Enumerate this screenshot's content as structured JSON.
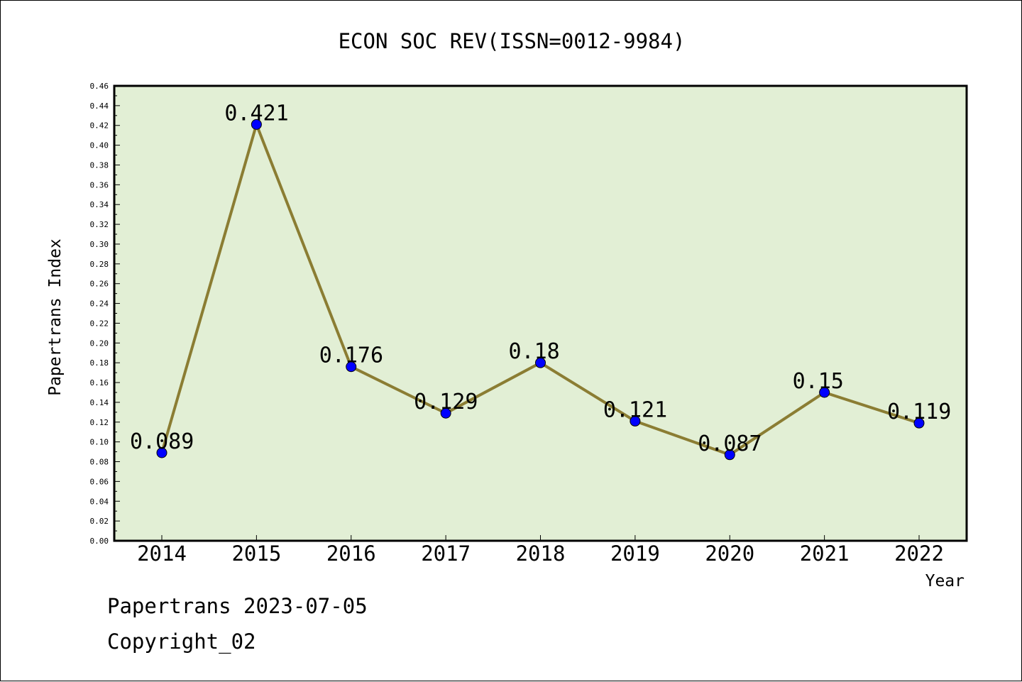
{
  "chart_data": {
    "type": "line",
    "title": "ECON SOC REV(ISSN=0012-9984)",
    "xlabel": "Year",
    "ylabel": "Papertrans Index",
    "categories": [
      "2014",
      "2015",
      "2016",
      "2017",
      "2018",
      "2019",
      "2020",
      "2021",
      "2022"
    ],
    "series": [
      {
        "values": [
          0.089,
          0.421,
          0.176,
          0.129,
          0.18,
          0.121,
          0.087,
          0.15,
          0.119
        ]
      }
    ],
    "data_labels": [
      "0.089",
      "0.421",
      "0.176",
      "0.129",
      "0.18",
      "0.121",
      "0.087",
      "0.15",
      "0.119"
    ],
    "ylim": [
      0,
      0.46
    ],
    "y_ticks": [
      "0.00",
      "0.02",
      "0.04",
      "0.06",
      "0.08",
      "0.10",
      "0.12",
      "0.14",
      "0.16",
      "0.18",
      "0.20",
      "0.22",
      "0.24",
      "0.26",
      "0.28",
      "0.30",
      "0.32",
      "0.34",
      "0.36",
      "0.38",
      "0.40",
      "0.42",
      "0.44",
      "0.46"
    ],
    "grid": false,
    "colors": {
      "plot_background": "#e2efd5",
      "line": "#8b7d33",
      "marker": "#0000ff"
    }
  },
  "footer": {
    "source": "Papertrans 2023-07-05",
    "copyright": "Copyright_02"
  }
}
